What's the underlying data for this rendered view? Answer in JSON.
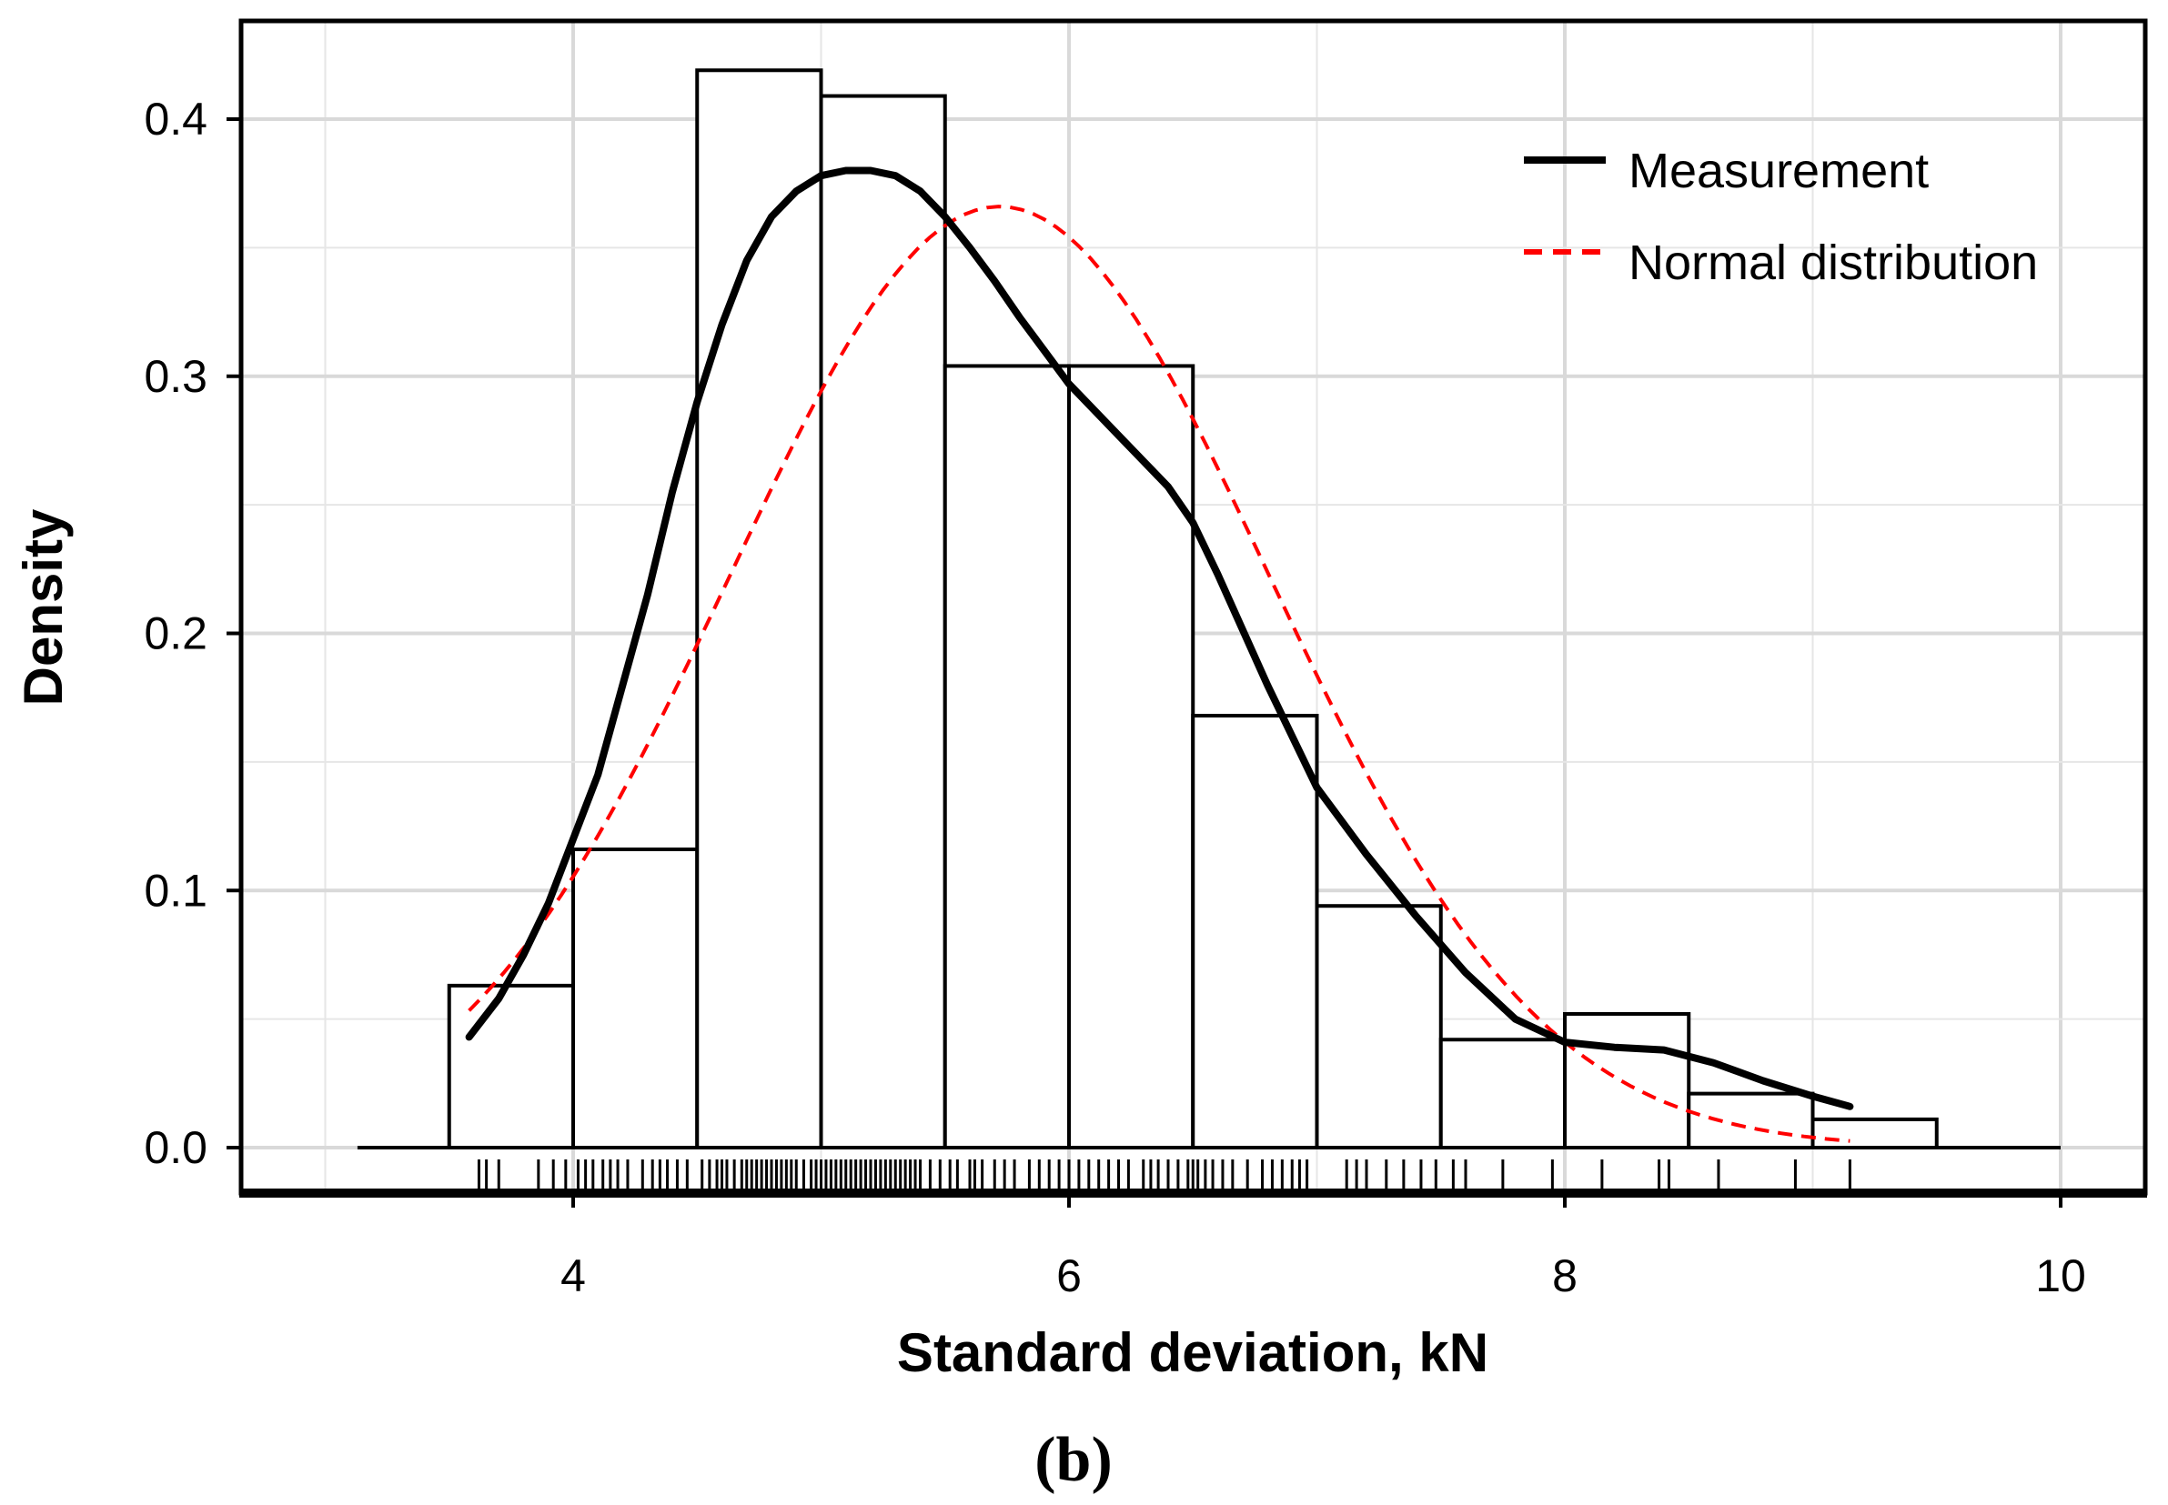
{
  "chart_data": {
    "type": "histogram",
    "xlabel": "Standard deviation, kN",
    "ylabel": "Density",
    "panel_label": "(b)",
    "xlim": [
      2.8,
      10.3
    ],
    "ylim": [
      -0.02,
      0.44
    ],
    "x_ticks": [
      4,
      6,
      8,
      10
    ],
    "y_ticks": [
      0.0,
      0.1,
      0.2,
      0.3,
      0.4
    ],
    "x_tick_labels": [
      "4",
      "6",
      "8",
      "10"
    ],
    "y_tick_labels": [
      "0.0",
      "0.1",
      "0.2",
      "0.3",
      "0.4"
    ],
    "x_minor_grid": [
      3,
      5,
      7,
      9
    ],
    "y_minor_grid": [
      0.05,
      0.15,
      0.25,
      0.35
    ],
    "grid": true,
    "baseline_range": [
      3.13,
      10.0
    ],
    "bins": [
      {
        "x0": 3.5,
        "x1": 4.0,
        "density": 0.063
      },
      {
        "x0": 4.0,
        "x1": 4.5,
        "density": 0.116
      },
      {
        "x0": 4.5,
        "x1": 5.0,
        "density": 0.419
      },
      {
        "x0": 5.0,
        "x1": 5.5,
        "density": 0.409
      },
      {
        "x0": 5.5,
        "x1": 6.0,
        "density": 0.304
      },
      {
        "x0": 6.0,
        "x1": 6.5,
        "density": 0.304
      },
      {
        "x0": 6.5,
        "x1": 7.0,
        "density": 0.168
      },
      {
        "x0": 7.0,
        "x1": 7.5,
        "density": 0.094
      },
      {
        "x0": 7.5,
        "x1": 8.0,
        "density": 0.042
      },
      {
        "x0": 8.0,
        "x1": 8.5,
        "density": 0.052
      },
      {
        "x0": 8.5,
        "x1": 9.0,
        "density": 0.021
      },
      {
        "x0": 9.0,
        "x1": 9.5,
        "density": 0.011
      }
    ],
    "series": [
      {
        "name": "Measurement",
        "style": "solid",
        "color": "#000000",
        "x": [
          3.58,
          3.7,
          3.8,
          3.9,
          4.0,
          4.1,
          4.2,
          4.3,
          4.4,
          4.5,
          4.6,
          4.7,
          4.8,
          4.9,
          5.0,
          5.1,
          5.2,
          5.3,
          5.4,
          5.5,
          5.6,
          5.7,
          5.8,
          5.9,
          6.0,
          6.2,
          6.4,
          6.5,
          6.6,
          6.8,
          7.0,
          7.2,
          7.4,
          7.6,
          7.8,
          8.0,
          8.2,
          8.4,
          8.6,
          8.8,
          9.0,
          9.15
        ],
        "y": [
          0.043,
          0.058,
          0.075,
          0.095,
          0.12,
          0.145,
          0.18,
          0.215,
          0.255,
          0.29,
          0.32,
          0.345,
          0.362,
          0.372,
          0.378,
          0.38,
          0.38,
          0.378,
          0.372,
          0.362,
          0.35,
          0.337,
          0.323,
          0.31,
          0.297,
          0.277,
          0.257,
          0.243,
          0.223,
          0.18,
          0.14,
          0.114,
          0.09,
          0.068,
          0.05,
          0.041,
          0.039,
          0.038,
          0.033,
          0.026,
          0.02,
          0.016
        ]
      },
      {
        "name": "Normal distribution",
        "style": "dashed",
        "color": "#ff0000",
        "mean": 5.72,
        "sd": 1.09,
        "x_range": [
          3.58,
          9.15
        ]
      }
    ],
    "legend": {
      "position": "top-right",
      "entries": [
        "Measurement",
        "Normal distribution"
      ]
    },
    "rug": [
      3.62,
      3.65,
      3.7,
      3.86,
      3.92,
      3.97,
      4.02,
      4.05,
      4.08,
      4.12,
      4.15,
      4.18,
      4.22,
      4.28,
      4.32,
      4.35,
      4.38,
      4.42,
      4.46,
      4.52,
      4.55,
      4.58,
      4.6,
      4.62,
      4.65,
      4.68,
      4.7,
      4.72,
      4.74,
      4.76,
      4.78,
      4.8,
      4.82,
      4.84,
      4.86,
      4.88,
      4.9,
      4.93,
      4.96,
      4.98,
      5.0,
      5.02,
      5.04,
      5.06,
      5.08,
      5.1,
      5.12,
      5.14,
      5.16,
      5.18,
      5.2,
      5.22,
      5.24,
      5.26,
      5.28,
      5.3,
      5.32,
      5.34,
      5.36,
      5.38,
      5.4,
      5.44,
      5.48,
      5.52,
      5.55,
      5.6,
      5.62,
      5.65,
      5.7,
      5.74,
      5.78,
      5.84,
      5.88,
      5.92,
      5.96,
      6.0,
      6.04,
      6.08,
      6.12,
      6.16,
      6.2,
      6.24,
      6.3,
      6.33,
      6.36,
      6.4,
      6.44,
      6.48,
      6.5,
      6.52,
      6.55,
      6.58,
      6.62,
      6.66,
      6.72,
      6.78,
      6.82,
      6.86,
      6.9,
      6.93,
      6.96,
      7.12,
      7.16,
      7.2,
      7.28,
      7.35,
      7.42,
      7.48,
      7.55,
      7.6,
      7.75,
      7.95,
      8.15,
      8.38,
      8.42,
      8.62,
      8.93,
      9.15
    ]
  }
}
